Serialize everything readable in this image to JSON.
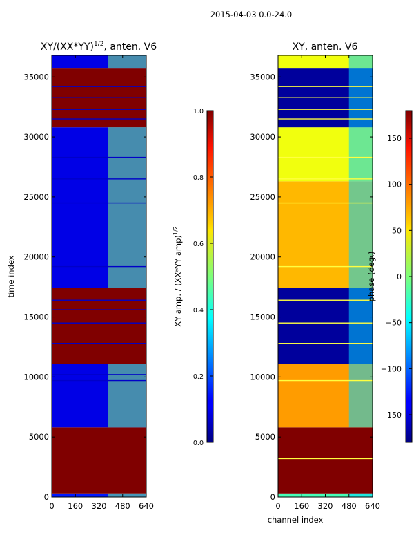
{
  "figure": {
    "suptitle": "2015-04-03 0.0-24.0"
  },
  "chart_data": [
    {
      "type": "heatmap",
      "title": "XY/(XX*YY)",
      "title_exponent": "1/2",
      "title_suffix": ", anten. V6",
      "xlabel": "",
      "ylabel": "time index",
      "xlim": [
        0,
        640
      ],
      "ylim": [
        0,
        36800
      ],
      "xticks": [
        0,
        160,
        320,
        480,
        640
      ],
      "xtick_labels": [
        "0",
        "160",
        "320",
        "480",
        "640"
      ],
      "yticks": [
        0,
        5000,
        10000,
        15000,
        20000,
        25000,
        30000,
        35000
      ],
      "ytick_labels": [
        "0",
        "5000",
        "10000",
        "15000",
        "20000",
        "25000",
        "30000",
        "35000"
      ],
      "colorbar": {
        "label": "XY amp. / (XX*YY amp)",
        "label_exponent": "1/2",
        "range": [
          0.0,
          1.0
        ],
        "ticks": [
          0.0,
          0.2,
          0.4,
          0.6,
          0.8,
          1.0
        ],
        "tick_labels": [
          "0.0",
          "0.2",
          "0.4",
          "0.6",
          "0.8",
          "1.0"
        ]
      },
      "bands": [
        {
          "t0": 0,
          "t1": 300,
          "value": 0.15
        },
        {
          "t0": 300,
          "t1": 5800,
          "value": 1.0
        },
        {
          "t0": 5800,
          "t1": 11100,
          "value": 0.1
        },
        {
          "t0": 11100,
          "t1": 17400,
          "value": 1.0
        },
        {
          "t0": 17400,
          "t1": 30800,
          "value": 0.1
        },
        {
          "t0": 30800,
          "t1": 35700,
          "value": 1.0
        },
        {
          "t0": 35700,
          "t1": 36800,
          "value": 0.1
        }
      ],
      "active_region": {
        "x0": 380,
        "x1": 640,
        "value": 0.5
      },
      "thin_lines": [
        9700,
        10200,
        12800,
        14500,
        15600,
        16400,
        19200,
        24500,
        26500,
        28300,
        31500,
        32300,
        33300,
        34200
      ]
    },
    {
      "type": "heatmap",
      "title": "XY, anten. V6",
      "xlabel": "channel index",
      "ylabel": "",
      "xlim": [
        0,
        640
      ],
      "ylim": [
        0,
        36800
      ],
      "xticks": [
        0,
        160,
        320,
        480,
        640
      ],
      "xtick_labels": [
        "0",
        "160",
        "320",
        "480",
        "640"
      ],
      "yticks": [
        0,
        5000,
        10000,
        15000,
        20000,
        25000,
        30000,
        35000
      ],
      "ytick_labels": [
        "0",
        "5000",
        "10000",
        "15000",
        "20000",
        "25000",
        "30000",
        "35000"
      ],
      "colorbar": {
        "label": "phase (deg.)",
        "range": [
          -180,
          180
        ],
        "ticks": [
          -150,
          -100,
          -50,
          0,
          50,
          100,
          150
        ],
        "tick_labels": [
          "−150",
          "−100",
          "−50",
          "0",
          "50",
          "100",
          "150"
        ]
      },
      "bands": [
        {
          "t0": 0,
          "t1": 300,
          "value": -20
        },
        {
          "t0": 300,
          "t1": 5800,
          "value": 180
        },
        {
          "t0": 5800,
          "t1": 11100,
          "value": 80
        },
        {
          "t0": 11100,
          "t1": 17400,
          "value": -170
        },
        {
          "t0": 17400,
          "t1": 26300,
          "value": 70
        },
        {
          "t0": 26300,
          "t1": 30800,
          "value": 40
        },
        {
          "t0": 30800,
          "t1": 35700,
          "value": -170
        },
        {
          "t0": 35700,
          "t1": 36800,
          "value": 40
        }
      ],
      "active_region": {
        "x0": 480,
        "x1": 640,
        "value": -60
      },
      "thin_lines": [
        3200,
        9700,
        12800,
        14500,
        16400,
        19200,
        24500,
        26500,
        28300,
        31500,
        32300,
        33300,
        34200
      ]
    }
  ]
}
